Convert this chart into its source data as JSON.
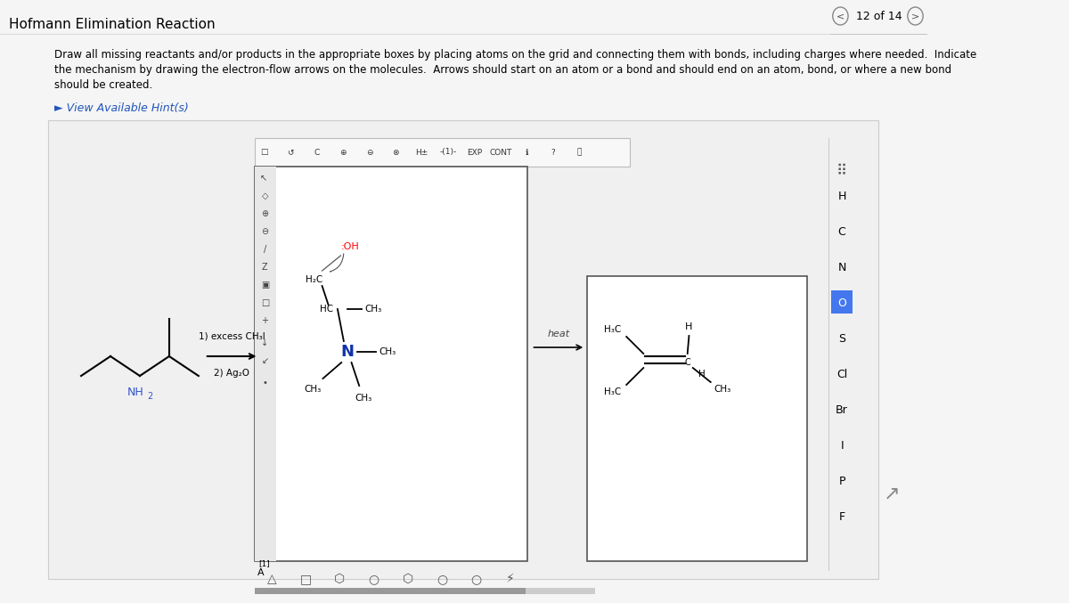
{
  "title": "Hofmann Elimination Reaction",
  "subtitle_line1": "Draw all missing reactants and/or products in the appropriate boxes by placing atoms on the grid and connecting them with bonds, including charges where needed.  Indicate",
  "subtitle_line2": "the mechanism by drawing the electron-flow arrows on the molecules.  Arrows should start on an atom or a bond and should end on an atom, bond, or where a new bond",
  "subtitle_line3": "should be created.",
  "hint_text": "► View Available Hint(s)",
  "nav_text": "12 of 14",
  "page_bg": "#f5f5f5",
  "inner_bg": "#f0f0f0",
  "box_bg": "#ffffff",
  "step_label_1": "1) excess CH₃I",
  "step_label_2": "2) Ag₂O",
  "heat_label": "heat",
  "element_list": [
    "H",
    "C",
    "N",
    "O",
    "S",
    "Cl",
    "Br",
    "I",
    "P",
    "F"
  ],
  "bottom_label": "[1]",
  "bottom_label2": "A",
  "title_font": 11,
  "subtitle_font": 8.5,
  "hint_font": 9,
  "nav_font": 9,
  "mol_font": 7,
  "elem_font": 9
}
